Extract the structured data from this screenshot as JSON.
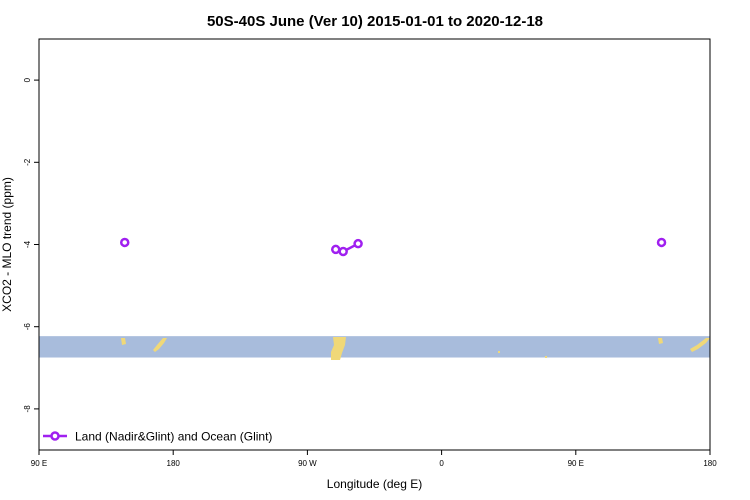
{
  "chart_data": {
    "type": "line",
    "title": "50S-40S June (Ver 10)   2015-01-01 to 2020-12-18",
    "xlabel": "Longitude (deg E)",
    "ylabel": "XCO2 - MLO trend (ppm)",
    "x_ticks": [
      {
        "value": 90,
        "label": "90 E"
      },
      {
        "value": 180,
        "label": "180"
      },
      {
        "value": 270,
        "label": "90 W"
      },
      {
        "value": 360,
        "label": "0"
      },
      {
        "value": 450,
        "label": "90 E"
      },
      {
        "value": 540,
        "label": "180"
      }
    ],
    "y_ticks": [
      {
        "value": 0,
        "label": "0"
      },
      {
        "value": -2,
        "label": "-2"
      },
      {
        "value": -4,
        "label": "-4"
      },
      {
        "value": -6,
        "label": "-6"
      },
      {
        "value": -8,
        "label": "-8"
      }
    ],
    "xlim": [
      90,
      540
    ],
    "ylim": [
      -9,
      1
    ],
    "grid": false,
    "legend_position": "bottom-left",
    "series": [
      {
        "name": "Land (Nadir&Glint) and Ocean (Glint)",
        "color": "#a020f0",
        "marker": "open-circle",
        "points": [
          {
            "x": 147.5,
            "y": -3.95
          },
          {
            "x": 289,
            "y": -4.12
          },
          {
            "x": 294,
            "y": -4.17
          },
          {
            "x": 304,
            "y": -3.98
          },
          {
            "x": 507.5,
            "y": -3.95
          }
        ],
        "segments": [
          [
            0
          ],
          [
            1,
            2,
            3
          ],
          [
            4
          ]
        ]
      }
    ],
    "map_strip": {
      "ocean_color": "#a8bcdc",
      "land_color": "#f0d878",
      "y_range": [
        -6.75,
        -6.23
      ]
    }
  }
}
